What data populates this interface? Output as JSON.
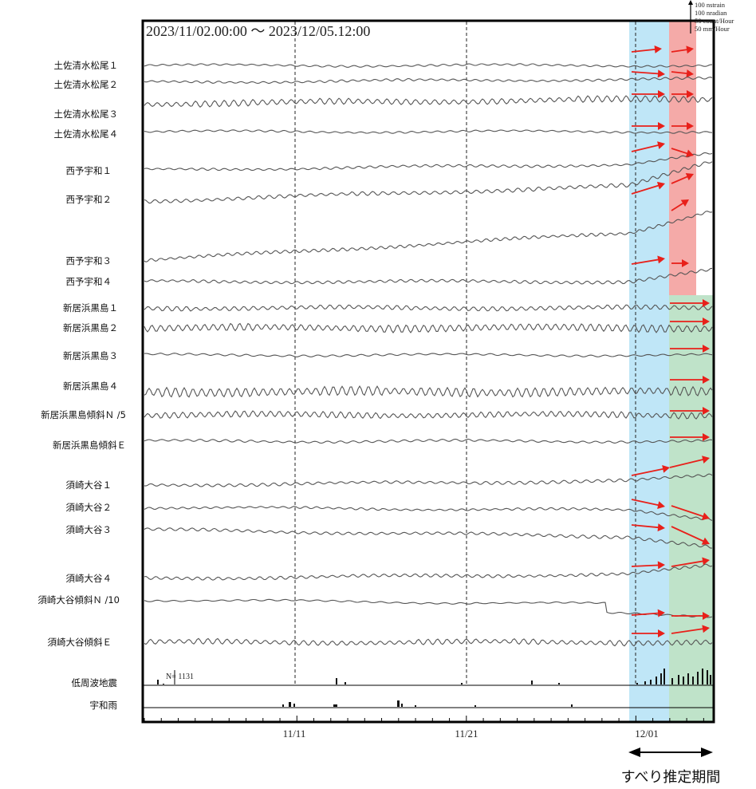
{
  "chart_data": {
    "type": "line",
    "title": "2023/11/02.00:00 ～ 2023/12/05.12:00",
    "time_range": [
      "2023-11-02 00:00",
      "2023-12-05 12:00"
    ],
    "x_ticks": [
      "11/11",
      "11/21",
      "12/01"
    ],
    "scale_legend": [
      "100 nstrain",
      "100 nradian",
      "50 count/Hour",
      "50 mm/Hour"
    ],
    "shaded_periods": [
      {
        "color": "#bfe6f7",
        "start": "2023-11-30 12:00",
        "end": "2023-12-02 12:00"
      },
      {
        "color": "#f5aaa8",
        "start": "2023-12-02 12:00",
        "end": "2023-12-04 12:00"
      },
      {
        "color": "#bfe3c9",
        "start": "2023-12-02 12:00",
        "end": "2023-12-05 12:00"
      }
    ],
    "estimated_slip_period_label": "すべり推定期間",
    "low_frequency_count_label": "N= 1131",
    "series": [
      {
        "name": "土佐清水松尾１"
      },
      {
        "name": "土佐清水松尾２"
      },
      {
        "name": "土佐清水松尾３"
      },
      {
        "name": "土佐清水松尾４"
      },
      {
        "name": "西予宇和１"
      },
      {
        "name": "西予宇和２"
      },
      {
        "name": "西予宇和３"
      },
      {
        "name": "西予宇和４"
      },
      {
        "name": "新居浜黒島１"
      },
      {
        "name": "新居浜黒島２"
      },
      {
        "name": "新居浜黒島３"
      },
      {
        "name": "新居浜黒島４"
      },
      {
        "name": "新居浜黒島傾斜Ｎ /5"
      },
      {
        "name": "新居浜黒島傾斜Ｅ"
      },
      {
        "name": "須崎大谷１"
      },
      {
        "name": "須崎大谷２"
      },
      {
        "name": "須崎大谷３"
      },
      {
        "name": "須崎大谷４"
      },
      {
        "name": "須崎大谷傾斜Ｎ /10"
      },
      {
        "name": "須崎大谷傾斜Ｅ"
      },
      {
        "name": "低周波地震"
      },
      {
        "name": "宇和雨"
      }
    ]
  }
}
